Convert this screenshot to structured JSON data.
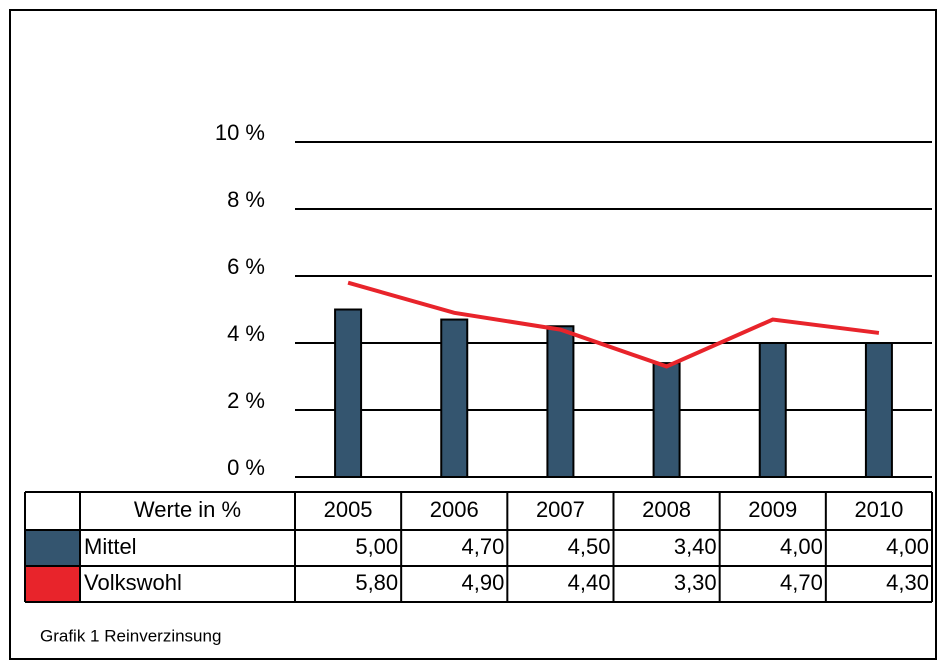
{
  "chart_data": {
    "type": "bar_line",
    "categories": [
      "2005",
      "2006",
      "2007",
      "2008",
      "2009",
      "2010"
    ],
    "table_header": "Werte in %",
    "series": [
      {
        "name": "Mittel",
        "type": "bar",
        "color": "#34556f",
        "values": [
          5.0,
          4.7,
          4.5,
          3.4,
          4.0,
          4.0
        ],
        "value_labels": [
          "5,00",
          "4,70",
          "4,50",
          "3,40",
          "4,00",
          "4,00"
        ]
      },
      {
        "name": "Volkswohl",
        "type": "line",
        "color": "#e8242b",
        "values": [
          5.8,
          4.9,
          4.4,
          3.3,
          4.7,
          4.3
        ],
        "value_labels": [
          "5,80",
          "4,90",
          "4,40",
          "3,30",
          "4,70",
          "4,30"
        ]
      }
    ],
    "ylim": [
      0,
      10
    ],
    "yticks": [
      {
        "value": 0,
        "label": "0 %"
      },
      {
        "value": 2,
        "label": "2 %"
      },
      {
        "value": 4,
        "label": "4 %"
      },
      {
        "value": 6,
        "label": "6 %"
      },
      {
        "value": 8,
        "label": "8 %"
      },
      {
        "value": 10,
        "label": "10 %"
      }
    ],
    "grid": true,
    "caption": "Grafik 1 Reinverzinsung"
  }
}
